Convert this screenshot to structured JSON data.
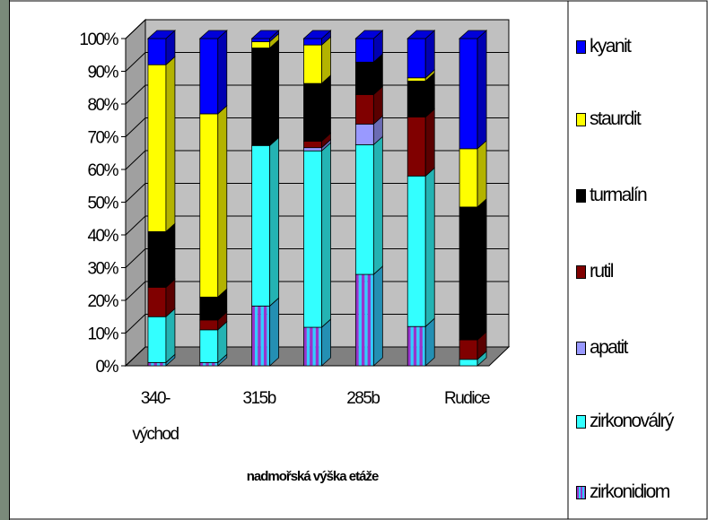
{
  "chart_data": {
    "type": "bar",
    "stacked": "percent",
    "three_d": true,
    "categories": [
      "340-východ",
      "",
      "315b",
      "",
      "285b",
      "",
      "Rudice"
    ],
    "category_lines": [
      [
        "340-",
        "východ"
      ],
      [
        ""
      ],
      [
        "315b"
      ],
      [
        ""
      ],
      [
        "285b"
      ],
      [
        ""
      ],
      [
        "Rudice"
      ]
    ],
    "series": [
      {
        "name": "zirkonidiom",
        "color": "#9933cc",
        "stripe": "#33ccff",
        "values": [
          1,
          1,
          19,
          12,
          31,
          12,
          0
        ]
      },
      {
        "name": "zirkonoválrý",
        "color": "#33ffff",
        "values": [
          14,
          10,
          51,
          55,
          44,
          46,
          2
        ]
      },
      {
        "name": "apatit",
        "color": "#9999ff",
        "values": [
          0,
          0,
          0,
          1,
          7,
          0,
          0
        ]
      },
      {
        "name": "rutil",
        "color": "#800000",
        "values": [
          9,
          3,
          0,
          2,
          10,
          18,
          6
        ]
      },
      {
        "name": "turmalín",
        "color": "#000000",
        "values": [
          17,
          7,
          31,
          18,
          11,
          11,
          41
        ]
      },
      {
        "name": "staurdit",
        "color": "#ffff00",
        "values": [
          51,
          56,
          2,
          12,
          0,
          1,
          18
        ]
      },
      {
        "name": "kyanit",
        "color": "#0000ff",
        "values": [
          8,
          23,
          1,
          2,
          8,
          12,
          34
        ]
      }
    ],
    "segments_bottom": [
      {
        "name": "zirkonidiom_stripe_lower",
        "values": [
          1,
          0,
          0,
          0,
          0,
          0,
          0
        ]
      },
      {
        "name": "rutil_base",
        "values": [
          1,
          0,
          0,
          0,
          0,
          0,
          0
        ]
      }
    ],
    "yticks": [
      "0%",
      "10%",
      "20%",
      "30%",
      "40%",
      "50%",
      "60%",
      "70%",
      "80%",
      "90%",
      "100%"
    ],
    "ylim": [
      0,
      100
    ],
    "xlabel": "nadmořská výška etáže",
    "ylabel": "",
    "title": "",
    "legend": {
      "position": "right",
      "order": [
        "kyanit",
        "staurdit",
        "turmalín",
        "rutil",
        "apatit",
        "zirkonoválrý",
        "zirkonidiom"
      ],
      "labels": [
        "kyanit",
        "staurdit",
        "turmalín",
        "rutil",
        "apatit",
        "zirkonoválrý",
        "zirkonidiom"
      ]
    },
    "grid": true,
    "plot_color": "#c0c0c0",
    "floor_color": "#808080"
  }
}
